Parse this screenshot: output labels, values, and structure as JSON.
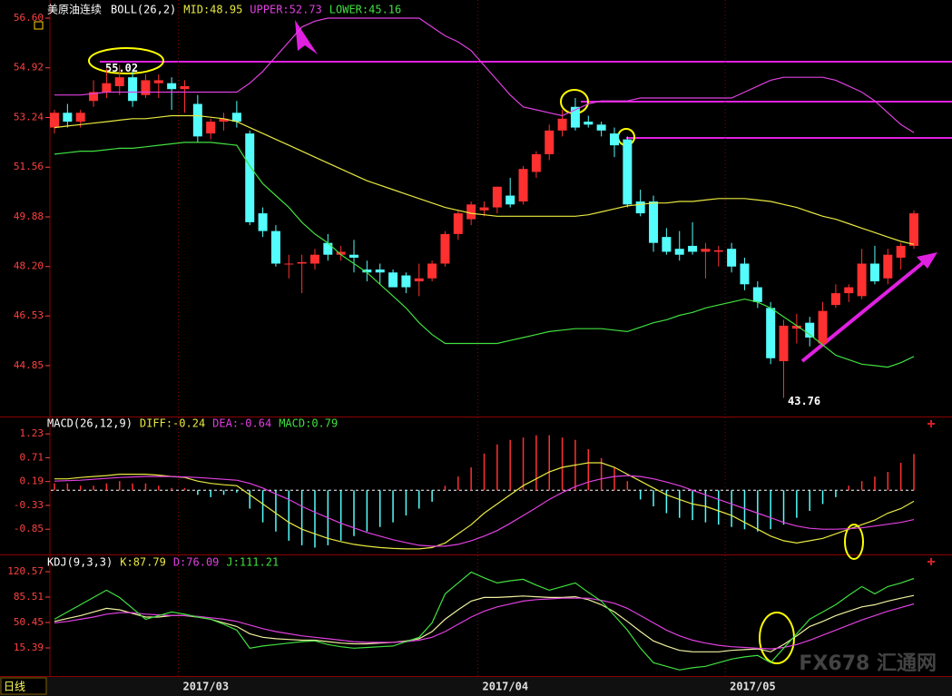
{
  "chart_data": [
    {
      "type": "candlestick",
      "title": "美原油连续",
      "period": "日线",
      "legend": [
        {
          "text": "BOLL(26,2)",
          "color": "#ffffff"
        },
        {
          "text": "MID:48.95",
          "color": "#e8e840"
        },
        {
          "text": "UPPER:52.73",
          "color": "#e040e0"
        },
        {
          "text": "LOWER:45.16",
          "color": "#40e040"
        }
      ],
      "categories": [
        null,
        null,
        null,
        null,
        null,
        null,
        null,
        null,
        null,
        null,
        "2017/03",
        null,
        null,
        null,
        null,
        null,
        null,
        null,
        null,
        null,
        null,
        null,
        null,
        null,
        null,
        null,
        null,
        null,
        null,
        null,
        null,
        null,
        null,
        "2017/04",
        null,
        null,
        null,
        null,
        null,
        null,
        null,
        null,
        null,
        null,
        null,
        null,
        null,
        null,
        null,
        null,
        null,
        null,
        "2017/05",
        null,
        null,
        null,
        null,
        null,
        null,
        null,
        null,
        null,
        null,
        null,
        null,
        null,
        null
      ],
      "open": [
        52.9,
        53.4,
        53.1,
        53.8,
        54.1,
        54.3,
        54.6,
        54.0,
        54.4,
        54.4,
        54.2,
        53.7,
        52.7,
        53.1,
        53.4,
        52.7,
        50.0,
        49.4,
        48.3,
        48.3,
        48.3,
        49.0,
        48.6,
        48.6,
        48.1,
        48.1,
        48.0,
        47.9,
        47.7,
        47.8,
        48.3,
        49.3,
        49.8,
        50.1,
        50.2,
        50.6,
        50.4,
        51.4,
        52.0,
        52.8,
        53.6,
        53.1,
        53.0,
        52.7,
        52.5,
        50.4,
        50.4,
        49.2,
        48.8,
        48.9,
        48.7,
        48.7,
        48.8,
        48.3,
        47.5,
        46.8,
        45.0,
        46.1,
        46.3,
        45.6,
        46.9,
        47.3,
        47.2,
        48.3,
        47.8,
        48.5,
        48.9
      ],
      "high": [
        53.5,
        53.7,
        53.5,
        54.5,
        54.9,
        55.02,
        54.8,
        54.7,
        54.7,
        54.6,
        54.5,
        54.0,
        53.2,
        53.4,
        53.8,
        52.8,
        50.2,
        49.6,
        48.6,
        48.6,
        48.8,
        49.3,
        48.9,
        49.1,
        48.4,
        48.3,
        48.1,
        48.0,
        48.3,
        48.4,
        49.4,
        50.1,
        50.4,
        50.4,
        50.9,
        51.2,
        51.6,
        52.1,
        53.0,
        53.5,
        53.9,
        53.3,
        53.1,
        52.9,
        52.6,
        50.8,
        50.6,
        49.5,
        49.4,
        49.7,
        49.0,
        48.9,
        49.0,
        48.5,
        47.7,
        47.0,
        46.4,
        46.6,
        46.5,
        47.0,
        47.6,
        47.6,
        48.8,
        48.9,
        48.8,
        49.0,
        50.1
      ],
      "low": [
        52.7,
        52.9,
        52.9,
        53.6,
        53.9,
        54.0,
        53.6,
        53.9,
        53.9,
        53.5,
        53.4,
        52.4,
        52.5,
        52.8,
        52.9,
        49.6,
        49.2,
        48.2,
        47.8,
        47.3,
        48.1,
        48.4,
        48.4,
        48.0,
        47.7,
        47.6,
        47.5,
        47.3,
        47.2,
        47.7,
        48.2,
        49.1,
        49.6,
        49.9,
        50.0,
        50.2,
        50.3,
        51.2,
        51.8,
        52.6,
        52.8,
        52.9,
        52.6,
        51.9,
        50.2,
        49.9,
        48.7,
        48.6,
        48.4,
        48.6,
        47.8,
        48.2,
        48.0,
        47.4,
        46.8,
        44.9,
        43.76,
        45.6,
        45.5,
        45.5,
        46.8,
        47.0,
        47.1,
        47.6,
        47.6,
        48.1,
        48.8
      ],
      "close": [
        53.4,
        53.1,
        53.4,
        54.1,
        54.4,
        54.6,
        53.8,
        54.5,
        54.5,
        54.2,
        54.3,
        52.6,
        53.1,
        53.2,
        53.1,
        49.7,
        49.4,
        48.3,
        48.3,
        48.35,
        48.6,
        48.6,
        48.7,
        48.5,
        48.0,
        48.0,
        47.5,
        47.5,
        47.8,
        48.3,
        49.3,
        50.0,
        50.3,
        50.2,
        50.9,
        50.3,
        51.5,
        52.0,
        52.8,
        53.2,
        52.9,
        53.0,
        52.8,
        52.3,
        50.3,
        50.0,
        49.0,
        48.7,
        48.6,
        48.7,
        48.8,
        48.75,
        48.2,
        47.6,
        47.0,
        45.1,
        46.2,
        46.2,
        45.8,
        46.7,
        47.3,
        47.5,
        48.3,
        47.7,
        48.6,
        48.9,
        50.0
      ],
      "up_color": "#ff3030",
      "down_color": "#54fcfc",
      "series": [
        {
          "color": "#e040e0",
          "values": [
            54.0,
            54.0,
            54.0,
            54.05,
            54.1,
            54.1,
            54.1,
            54.1,
            54.1,
            54.1,
            54.1,
            54.1,
            54.1,
            54.1,
            54.1,
            54.4,
            54.8,
            55.3,
            55.8,
            56.3,
            56.5,
            56.6,
            56.6,
            56.6,
            56.6,
            56.6,
            56.6,
            56.6,
            56.6,
            56.3,
            56.0,
            55.8,
            55.5,
            55.0,
            54.5,
            54.0,
            53.6,
            53.5,
            53.4,
            53.3,
            53.5,
            53.7,
            53.8,
            53.8,
            53.8,
            53.9,
            53.9,
            53.9,
            53.9,
            53.9,
            53.9,
            53.9,
            53.9,
            54.1,
            54.3,
            54.5,
            54.6,
            54.6,
            54.6,
            54.6,
            54.5,
            54.3,
            54.1,
            53.8,
            53.4,
            53.0,
            52.73
          ]
        },
        {
          "color": "#e8e840",
          "values": [
            52.9,
            52.95,
            53.0,
            53.05,
            53.1,
            53.15,
            53.2,
            53.2,
            53.25,
            53.3,
            53.3,
            53.3,
            53.25,
            53.2,
            53.1,
            52.9,
            52.7,
            52.5,
            52.3,
            52.1,
            51.9,
            51.7,
            51.5,
            51.3,
            51.1,
            50.95,
            50.8,
            50.65,
            50.5,
            50.35,
            50.2,
            50.1,
            50.0,
            49.95,
            49.9,
            49.9,
            49.9,
            49.9,
            49.9,
            49.9,
            49.9,
            49.95,
            50.05,
            50.15,
            50.25,
            50.3,
            50.35,
            50.35,
            50.4,
            50.4,
            50.45,
            50.5,
            50.5,
            50.5,
            50.45,
            50.4,
            50.3,
            50.2,
            50.05,
            49.9,
            49.8,
            49.65,
            49.5,
            49.35,
            49.2,
            49.05,
            48.95
          ]
        },
        {
          "color": "#40e040",
          "values": [
            52.0,
            52.05,
            52.1,
            52.1,
            52.15,
            52.2,
            52.2,
            52.25,
            52.3,
            52.35,
            52.4,
            52.4,
            52.4,
            52.35,
            52.3,
            51.6,
            51.0,
            50.6,
            50.2,
            49.7,
            49.3,
            49.0,
            48.6,
            48.3,
            48.0,
            47.6,
            47.2,
            46.8,
            46.3,
            45.9,
            45.6,
            45.6,
            45.6,
            45.6,
            45.6,
            45.7,
            45.8,
            45.9,
            46.0,
            46.05,
            46.1,
            46.1,
            46.1,
            46.05,
            46.0,
            46.15,
            46.3,
            46.4,
            46.55,
            46.65,
            46.8,
            46.9,
            47.0,
            47.1,
            47.0,
            46.8,
            46.5,
            46.2,
            45.9,
            45.55,
            45.2,
            45.05,
            44.9,
            44.85,
            44.8,
            44.95,
            45.16
          ]
        }
      ],
      "annotations": [
        {
          "label": "55.02",
          "value": 55.02
        },
        {
          "label": "43.76",
          "value": 43.76
        }
      ],
      "ylim": [
        43.16,
        57.06
      ],
      "yticks": [
        {
          "value": 56.6,
          "label": "56.60"
        },
        54.92,
        53.24,
        51.56,
        49.88,
        {
          "value": 48.2,
          "label": "48.20"
        },
        46.53,
        44.85
      ]
    },
    {
      "type": "macd",
      "legend": [
        {
          "text": "MACD(26,12,9)",
          "color": "#ffffff"
        },
        {
          "text": "DIFF:-0.24",
          "color": "#e8e840"
        },
        {
          "text": "DEA:-0.64",
          "color": "#e040e0"
        },
        {
          "text": "MACD:0.79",
          "color": "#40e040"
        }
      ],
      "values": [
        0.15,
        0.15,
        0.1,
        0.1,
        0.15,
        0.2,
        0.15,
        0.15,
        0.1,
        0.05,
        0.05,
        -0.1,
        -0.15,
        -0.1,
        -0.05,
        -0.4,
        -0.7,
        -0.9,
        -1.1,
        -1.2,
        -1.25,
        -1.2,
        -1.1,
        -1.0,
        -0.9,
        -0.8,
        -0.7,
        -0.55,
        -0.4,
        -0.25,
        0.1,
        0.3,
        0.5,
        0.8,
        1.0,
        1.1,
        1.15,
        1.2,
        1.2,
        1.15,
        1.1,
        0.9,
        0.7,
        0.5,
        0.2,
        -0.2,
        -0.35,
        -0.5,
        -0.6,
        -0.65,
        -0.7,
        -0.75,
        -0.8,
        -0.85,
        -0.9,
        -0.85,
        -0.75,
        -0.6,
        -0.45,
        -0.3,
        -0.15,
        0.1,
        0.2,
        0.3,
        0.4,
        0.6,
        0.79
      ],
      "up_color": "#ff3030",
      "down_color": "#54fcfc",
      "series": [
        {
          "color": "#e8e840",
          "values": [
            0.25,
            0.25,
            0.28,
            0.3,
            0.32,
            0.35,
            0.35,
            0.35,
            0.33,
            0.3,
            0.28,
            0.2,
            0.15,
            0.12,
            0.1,
            -0.1,
            -0.3,
            -0.5,
            -0.7,
            -0.85,
            -0.95,
            -1.05,
            -1.12,
            -1.18,
            -1.22,
            -1.25,
            -1.27,
            -1.28,
            -1.28,
            -1.25,
            -1.15,
            -0.95,
            -0.75,
            -0.5,
            -0.3,
            -0.1,
            0.1,
            0.25,
            0.4,
            0.5,
            0.55,
            0.6,
            0.6,
            0.5,
            0.35,
            0.2,
            0.05,
            -0.1,
            -0.2,
            -0.3,
            -0.35,
            -0.45,
            -0.55,
            -0.7,
            -0.85,
            -1.0,
            -1.1,
            -1.15,
            -1.1,
            -1.05,
            -0.95,
            -0.85,
            -0.75,
            -0.65,
            -0.5,
            -0.4,
            -0.24
          ]
        },
        {
          "color": "#e040e0",
          "values": [
            0.2,
            0.21,
            0.22,
            0.24,
            0.26,
            0.28,
            0.29,
            0.3,
            0.3,
            0.3,
            0.29,
            0.28,
            0.26,
            0.24,
            0.22,
            0.15,
            0.05,
            -0.08,
            -0.2,
            -0.35,
            -0.48,
            -0.6,
            -0.72,
            -0.82,
            -0.92,
            -1.0,
            -1.08,
            -1.14,
            -1.2,
            -1.22,
            -1.22,
            -1.18,
            -1.1,
            -1.0,
            -0.88,
            -0.72,
            -0.55,
            -0.38,
            -0.2,
            -0.05,
            0.08,
            0.18,
            0.25,
            0.3,
            0.32,
            0.3,
            0.25,
            0.18,
            0.1,
            0.0,
            -0.1,
            -0.2,
            -0.3,
            -0.4,
            -0.5,
            -0.6,
            -0.7,
            -0.78,
            -0.83,
            -0.85,
            -0.85,
            -0.84,
            -0.82,
            -0.78,
            -0.74,
            -0.7,
            -0.64
          ]
        }
      ],
      "ylim": [
        -1.38,
        1.55
      ],
      "yticks": [
        1.23,
        0.71,
        0.19,
        -0.33,
        -0.85
      ]
    },
    {
      "type": "line",
      "legend": [
        {
          "text": "KDJ(9,3,3)",
          "color": "#ffffff"
        },
        {
          "text": "K:87.79",
          "color": "#e8e840"
        },
        {
          "text": "D:76.09",
          "color": "#e040e0"
        },
        {
          "text": "J:111.21",
          "color": "#40e040"
        }
      ],
      "series": [
        {
          "color": "#f0f0a0",
          "values": [
            52,
            56,
            60,
            65,
            70,
            68,
            63,
            58,
            58,
            60,
            60,
            58,
            55,
            50,
            45,
            35,
            30,
            28,
            27,
            26,
            26,
            24,
            22,
            21,
            21,
            22,
            23,
            25,
            28,
            38,
            55,
            68,
            80,
            85,
            85,
            86,
            87,
            86,
            85,
            85,
            86,
            82,
            75,
            65,
            52,
            38,
            25,
            18,
            12,
            10,
            10,
            10,
            12,
            13,
            14,
            10,
            20,
            32,
            45,
            52,
            60,
            66,
            72,
            75,
            80,
            84,
            87.79
          ]
        },
        {
          "color": "#e040e0",
          "values": [
            50,
            52,
            55,
            58,
            62,
            64,
            64,
            62,
            61,
            60,
            60,
            59,
            57,
            55,
            52,
            47,
            42,
            38,
            35,
            32,
            30,
            28,
            26,
            24,
            23,
            23,
            23,
            24,
            26,
            30,
            38,
            48,
            58,
            66,
            72,
            76,
            80,
            82,
            83,
            84,
            84,
            84,
            81,
            77,
            70,
            60,
            50,
            40,
            32,
            26,
            22,
            19,
            17,
            16,
            15,
            14,
            16,
            20,
            26,
            33,
            40,
            47,
            54,
            60,
            66,
            71,
            76.09
          ]
        },
        {
          "color": "#40e040",
          "values": [
            55,
            65,
            75,
            85,
            95,
            85,
            70,
            55,
            60,
            65,
            62,
            58,
            55,
            48,
            40,
            15,
            18,
            20,
            22,
            24,
            25,
            20,
            17,
            15,
            16,
            17,
            18,
            24,
            30,
            50,
            90,
            105,
            120,
            112,
            105,
            108,
            110,
            102,
            95,
            100,
            105,
            92,
            80,
            60,
            40,
            15,
            -5,
            -10,
            -15,
            -12,
            -10,
            -5,
            0,
            3,
            5,
            -5,
            15,
            35,
            55,
            65,
            75,
            88,
            100,
            90,
            100,
            105,
            111.21
          ]
        }
      ],
      "ylim": [
        -23.4,
        140.6
      ],
      "yticks": [
        120.57,
        85.51,
        50.45,
        15.39
      ]
    }
  ],
  "watermark": "FX678 汇通网"
}
